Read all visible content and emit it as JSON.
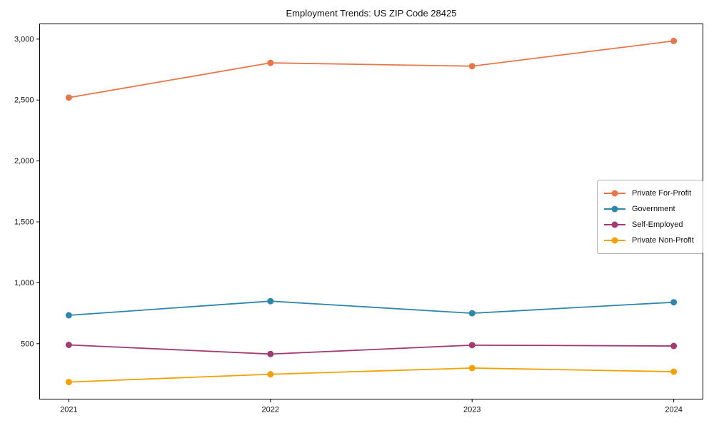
{
  "chart_data": {
    "type": "line",
    "title": "Employment Trends: US ZIP Code 28425",
    "xlabel": "",
    "ylabel": "",
    "x": [
      2021,
      2022,
      2023,
      2024
    ],
    "x_tick_labels": [
      "2021",
      "2022",
      "2023",
      "2024"
    ],
    "series": [
      {
        "name": "Private For-Profit",
        "color": "#E8764B",
        "values": [
          2520,
          2805,
          2778,
          2985
        ]
      },
      {
        "name": "Government",
        "color": "#2E86AB",
        "values": [
          733,
          849,
          750,
          840
        ]
      },
      {
        "name": "Self-Employed",
        "color": "#A23B72",
        "values": [
          490,
          415,
          488,
          481
        ]
      },
      {
        "name": "Private Non-Profit",
        "color": "#F0A202",
        "values": [
          185,
          249,
          300,
          270
        ]
      }
    ],
    "yticks": [
      500,
      1000,
      1500,
      2000,
      2500,
      3000
    ],
    "ytick_labels": [
      "500",
      "1,000",
      "1,500",
      "2,000",
      "2,500",
      "3,000"
    ],
    "ylim": [
      45,
      3125
    ],
    "grid": false,
    "marker": "circle",
    "legend_position": "center-right",
    "frame_color": "#000000",
    "tick_color": "#000000"
  }
}
